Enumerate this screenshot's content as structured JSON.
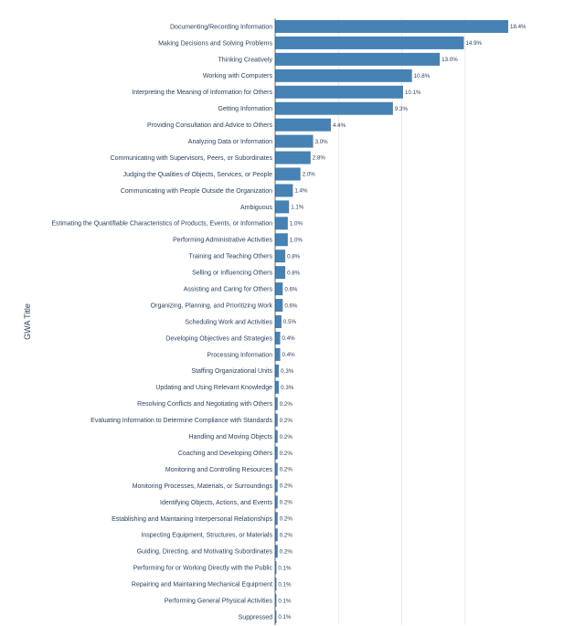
{
  "chart_data": {
    "type": "bar",
    "orientation": "horizontal",
    "title": "",
    "xlabel": "",
    "ylabel": "GWA Title",
    "xlim": [
      0,
      20
    ],
    "grid": "vertical lines at x = 5, 10, 15",
    "bar_color": "#4682b4",
    "categories": [
      "Documenting/Recording Information",
      "Making Decisions and Solving Problems",
      "Thinking Creatively",
      "Working with Computers",
      "Interpreting the Meaning of Information for Others",
      "Getting Information",
      "Providing Consultation and Advice to Others",
      "Analyzing Data or Information",
      "Communicating with Supervisors, Peers, or Subordinates",
      "Judging the Qualities of Objects, Services, or People",
      "Communicating with People Outside the Organization",
      "Ambiguous",
      "Estimating the Quantifiable Characteristics of Products, Events, or Information",
      "Performing Administrative Activities",
      "Training and Teaching Others",
      "Selling or Influencing Others",
      "Assisting and Caring for Others",
      "Organizing, Planning, and Prioritizing Work",
      "Scheduling Work and Activities",
      "Developing Objectives and Strategies",
      "Processing Information",
      "Staffing Organizational Units",
      "Updating and Using Relevant Knowledge",
      "Resolving Conflicts and Negotiating with Others",
      "Evaluating Information to Determine Compliance with Standards",
      "Handling and Moving Objects",
      "Coaching and Developing Others",
      "Monitoring and Controlling Resources",
      "Monitoring Processes, Materials, or Surroundings",
      "Identifying Objects, Actions, and Events",
      "Establishing and Maintaining Interpersonal Relationships",
      "Inspecting Equipment, Structures, or Materials",
      "Guiding, Directing, and Motivating Subordinates",
      "Performing for or Working Directly with the Public",
      "Repairing and Maintaining Mechanical Equipment",
      "Performing General Physical Activities",
      "Suppressed"
    ],
    "values": [
      18.4,
      14.9,
      13.0,
      10.8,
      10.1,
      9.3,
      4.4,
      3.0,
      2.8,
      2.0,
      1.4,
      1.1,
      1.0,
      1.0,
      0.8,
      0.8,
      0.6,
      0.6,
      0.5,
      0.4,
      0.4,
      0.3,
      0.3,
      0.2,
      0.2,
      0.2,
      0.2,
      0.2,
      0.2,
      0.2,
      0.2,
      0.2,
      0.2,
      0.1,
      0.1,
      0.1,
      0.1
    ],
    "value_labels": [
      "18.4%",
      "14.9%",
      "13.0%",
      "10.8%",
      "10.1%",
      "9.3%",
      "4.4%",
      "3.0%",
      "2.8%",
      "2.0%",
      "1.4%",
      "1.1%",
      "1.0%",
      "1.0%",
      "0.8%",
      "0.8%",
      "0.6%",
      "0.6%",
      "0.5%",
      "0.4%",
      "0.4%",
      "0.3%",
      "0.3%",
      "0.2%",
      "0.2%",
      "0.2%",
      "0.2%",
      "0.2%",
      "0.2%",
      "0.2%",
      "0.2%",
      "0.2%",
      "0.2%",
      "0.1%",
      "0.1%",
      "0.1%",
      "0.1%"
    ]
  }
}
